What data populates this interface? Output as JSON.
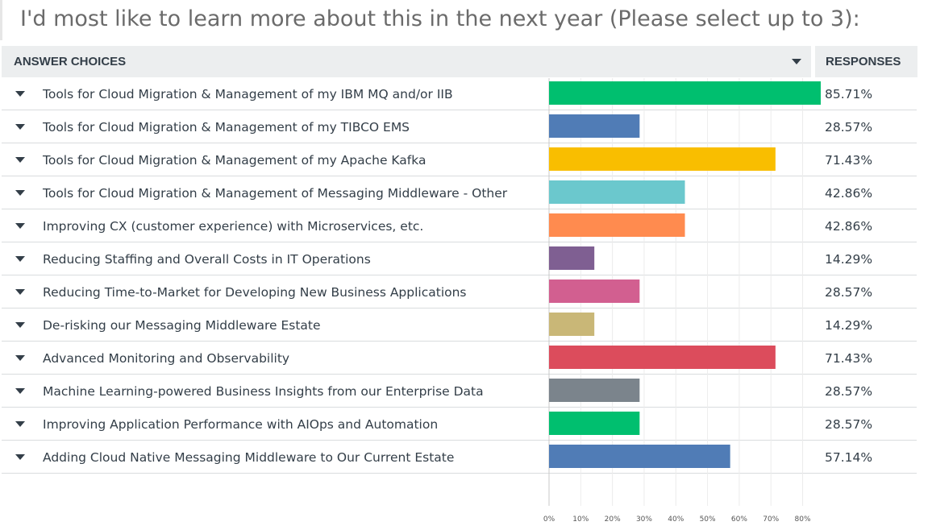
{
  "title": "I'd most like to learn more about this in the next year (Please select up to 3):",
  "header": {
    "choices_label": "ANSWER CHOICES",
    "responses_label": "RESPONSES"
  },
  "icons": {
    "row_toggle": "caret-down-icon",
    "sort": "caret-down-icon"
  },
  "chart_data": {
    "type": "bar",
    "orientation": "horizontal",
    "categories": [
      "Tools for Cloud Migration & Management of my IBM MQ and/or IIB",
      "Tools for Cloud Migration & Management of my TIBCO EMS",
      "Tools for Cloud Migration & Management of my Apache Kafka",
      "Tools for Cloud Migration & Management of Messaging Middleware - Other",
      "Improving CX (customer experience) with Microservices, etc.",
      "Reducing Staffing and Overall Costs in IT Operations",
      "Reducing Time-to-Market for Developing New Business Applications",
      "De-risking our Messaging Middleware Estate",
      "Advanced Monitoring and Observability",
      "Machine Learning-powered Business Insights from our Enterprise Data",
      "Improving Application Performance with AIOps and Automation",
      "Adding Cloud Native Messaging Middleware to Our Current Estate"
    ],
    "values": [
      85.71,
      28.57,
      71.43,
      42.86,
      42.86,
      14.29,
      28.57,
      14.29,
      71.43,
      28.57,
      28.57,
      57.14
    ],
    "value_labels": [
      "85.71%",
      "28.57%",
      "71.43%",
      "42.86%",
      "42.86%",
      "14.29%",
      "28.57%",
      "14.29%",
      "71.43%",
      "28.57%",
      "28.57%",
      "57.14%"
    ],
    "colors": [
      "#00bf6f",
      "#507cb6",
      "#f9be00",
      "#6bc8cd",
      "#ff8b4f",
      "#7f5f92",
      "#d25f90",
      "#c9b777",
      "#dc4c5c",
      "#7b848c",
      "#00bf6f",
      "#507cb6"
    ],
    "xlim": [
      0,
      85.71
    ],
    "xticks": [
      0,
      10,
      20,
      30,
      40,
      50,
      60,
      70,
      80
    ],
    "xtick_labels": [
      "0%",
      "10%",
      "20%",
      "30%",
      "40%",
      "50%",
      "60%",
      "70%",
      "80%"
    ],
    "grid": true
  }
}
